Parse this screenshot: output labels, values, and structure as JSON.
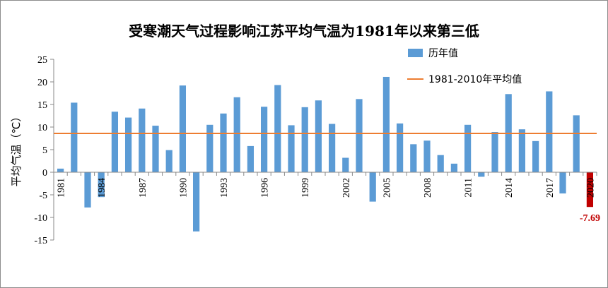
{
  "chart_data": {
    "type": "bar",
    "title": "受寒潮天气过程影响江苏平均气温为1981年以来第三低",
    "ylabel": "平均气温（℃）",
    "xlabel": "",
    "ylim": [
      -15,
      25
    ],
    "yticks": [
      25,
      20,
      15,
      10,
      5,
      0,
      -5,
      -10,
      -15
    ],
    "xtick_labels": [
      "1981",
      "1984",
      "1987",
      "1990",
      "1993",
      "1996",
      "1999",
      "2002",
      "2005",
      "2008",
      "2011",
      "2014",
      "2017",
      "2020"
    ],
    "categories": [
      "1981",
      "1982",
      "1983",
      "1984",
      "1985",
      "1986",
      "1987",
      "1988",
      "1989",
      "1990",
      "1991",
      "1992",
      "1993",
      "1994",
      "1995",
      "1996",
      "1997",
      "1998",
      "1999",
      "2000",
      "2001",
      "2002",
      "2003",
      "2004",
      "2005",
      "2006",
      "2007",
      "2008",
      "2009",
      "2010",
      "2011",
      "2012",
      "2013",
      "2014",
      "2015",
      "2016",
      "2017",
      "2018",
      "2019",
      "2020"
    ],
    "series": [
      {
        "name": "历年值",
        "color": "#5b9bd5",
        "values": [
          0.8,
          15.4,
          -7.8,
          -5.5,
          13.4,
          12.1,
          14.1,
          10.3,
          4.9,
          19.2,
          -13.1,
          10.5,
          13.0,
          16.6,
          5.8,
          14.5,
          19.3,
          10.4,
          14.4,
          15.9,
          10.7,
          3.2,
          16.2,
          -6.5,
          21.1,
          10.8,
          6.2,
          7.0,
          3.8,
          1.9,
          10.5,
          -1.0,
          8.9,
          17.3,
          9.5,
          6.9,
          17.9,
          -4.7,
          12.6,
          -7.69
        ]
      },
      {
        "name": "1981-2010年平均值",
        "color": "#ed7d31",
        "value": 8.6
      }
    ],
    "highlight": {
      "category": "2020",
      "color": "#c00000",
      "label": "-7.69"
    },
    "legend": "top-right",
    "grid": false
  }
}
